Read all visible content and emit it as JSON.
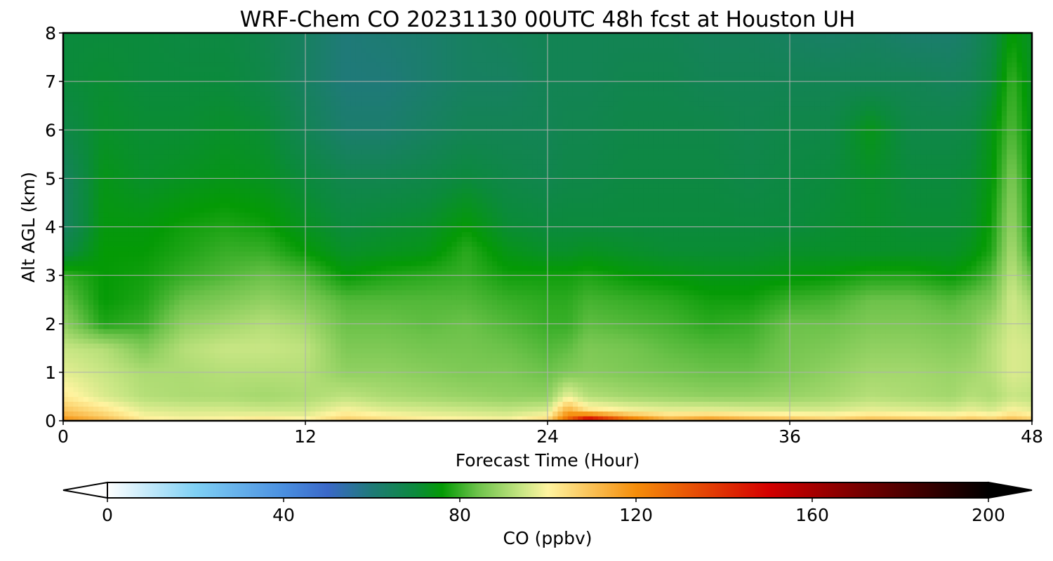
{
  "chart_data": {
    "type": "heatmap",
    "title": "WRF-Chem CO  20231130 00UTC 48h fcst at Houston UH",
    "xlabel": "Forecast Time (Hour)",
    "ylabel": "Alt AGL (km)",
    "xlim": [
      0,
      48
    ],
    "ylim": [
      0,
      8
    ],
    "x_ticks": [
      "0",
      "12",
      "24",
      "36",
      "48"
    ],
    "y_ticks": [
      "0",
      "1",
      "2",
      "3",
      "4",
      "5",
      "6",
      "7",
      "8"
    ],
    "grid": true,
    "colorbar": {
      "label": "CO  (ppbv)",
      "range": [
        0,
        200
      ],
      "ticks": [
        "0",
        "40",
        "80",
        "120",
        "160",
        "200"
      ],
      "extend": "both",
      "stops": [
        {
          "value": 0,
          "color": "#ffffff"
        },
        {
          "value": 20,
          "color": "#7fd0f4"
        },
        {
          "value": 40,
          "color": "#4a8fe0"
        },
        {
          "value": 50,
          "color": "#3a68c8"
        },
        {
          "value": 60,
          "color": "#1f7a78"
        },
        {
          "value": 70,
          "color": "#0b8a3c"
        },
        {
          "value": 76,
          "color": "#049a05"
        },
        {
          "value": 84,
          "color": "#6cc24a"
        },
        {
          "value": 94,
          "color": "#c8e684"
        },
        {
          "value": 100,
          "color": "#fff4a0"
        },
        {
          "value": 120,
          "color": "#f58d0a"
        },
        {
          "value": 150,
          "color": "#d40000"
        },
        {
          "value": 170,
          "color": "#7a0000"
        },
        {
          "value": 200,
          "color": "#000000"
        }
      ]
    },
    "hours": [
      0,
      2,
      4,
      6,
      8,
      10,
      12,
      14,
      16,
      18,
      20,
      22,
      24,
      25,
      26,
      28,
      30,
      32,
      34,
      36,
      38,
      40,
      42,
      44,
      45,
      46,
      47,
      48
    ],
    "altitudes_km": [
      0,
      0.2,
      0.5,
      1,
      1.5,
      2,
      2.5,
      3,
      3.5,
      4,
      5,
      6,
      7,
      8
    ],
    "values_ppbv": [
      [
        120,
        112,
        102,
        100,
        101,
        104,
        101,
        108,
        105,
        102,
        101,
        100,
        106,
        130,
        160,
        130,
        115,
        120,
        115,
        112,
        108,
        112,
        110,
        108,
        110,
        108,
        112,
        108
      ],
      [
        110,
        104,
        97,
        96,
        96,
        95,
        95,
        100,
        97,
        96,
        95,
        94,
        96,
        115,
        104,
        100,
        98,
        98,
        97,
        96,
        96,
        98,
        97,
        96,
        98,
        96,
        100,
        98
      ],
      [
        102,
        96,
        92,
        91,
        91,
        90,
        91,
        93,
        91,
        90,
        89,
        88,
        88,
        98,
        92,
        90,
        89,
        88,
        88,
        89,
        90,
        92,
        91,
        90,
        92,
        91,
        94,
        93
      ],
      [
        97,
        94,
        91,
        91,
        92,
        92,
        92,
        88,
        88,
        87,
        86,
        86,
        84,
        86,
        87,
        86,
        85,
        84,
        84,
        86,
        88,
        90,
        90,
        89,
        90,
        92,
        96,
        95
      ],
      [
        94,
        92,
        86,
        92,
        94,
        94,
        93,
        86,
        86,
        85,
        85,
        84,
        82,
        83,
        86,
        85,
        83,
        82,
        82,
        85,
        86,
        88,
        88,
        87,
        88,
        92,
        96,
        95
      ],
      [
        88,
        78,
        80,
        88,
        90,
        92,
        90,
        84,
        84,
        83,
        84,
        82,
        80,
        80,
        83,
        82,
        81,
        79,
        80,
        84,
        84,
        86,
        86,
        85,
        86,
        90,
        95,
        93
      ],
      [
        84,
        76,
        78,
        84,
        86,
        88,
        86,
        82,
        82,
        82,
        82,
        80,
        79,
        79,
        81,
        80,
        79,
        77,
        77,
        80,
        81,
        84,
        84,
        82,
        84,
        86,
        95,
        90
      ],
      [
        80,
        76,
        77,
        80,
        82,
        84,
        82,
        76,
        78,
        79,
        80,
        77,
        77,
        77,
        78,
        76,
        75,
        74,
        74,
        75,
        76,
        78,
        78,
        76,
        78,
        82,
        93,
        84
      ],
      [
        68,
        76,
        76,
        78,
        80,
        80,
        76,
        72,
        73,
        74,
        79,
        74,
        72,
        72,
        73,
        72,
        71,
        71,
        71,
        72,
        72,
        72,
        72,
        72,
        74,
        78,
        91,
        78
      ],
      [
        64,
        75,
        75,
        77,
        78,
        77,
        73,
        70,
        71,
        72,
        76,
        71,
        70,
        70,
        70,
        70,
        70,
        70,
        70,
        70,
        71,
        72,
        71,
        71,
        72,
        77,
        89,
        76
      ],
      [
        64,
        74,
        72,
        73,
        74,
        73,
        70,
        67,
        67,
        68,
        70,
        68,
        67,
        68,
        68,
        69,
        69,
        69,
        68,
        69,
        70,
        72,
        70,
        70,
        71,
        75,
        86,
        75
      ],
      [
        68,
        72,
        71,
        71,
        72,
        71,
        66,
        62,
        62,
        64,
        66,
        66,
        66,
        67,
        67,
        68,
        68,
        68,
        67,
        68,
        68,
        74,
        68,
        68,
        69,
        74,
        82,
        74
      ],
      [
        70,
        71,
        70,
        70,
        70,
        68,
        64,
        60,
        60,
        62,
        64,
        64,
        66,
        66,
        66,
        67,
        67,
        66,
        66,
        66,
        66,
        66,
        66,
        65,
        66,
        70,
        80,
        73
      ],
      [
        70,
        70,
        70,
        69,
        69,
        67,
        64,
        60,
        61,
        62,
        64,
        65,
        66,
        66,
        66,
        66,
        66,
        65,
        65,
        64,
        63,
        64,
        62,
        62,
        64,
        68,
        76,
        72
      ]
    ]
  }
}
